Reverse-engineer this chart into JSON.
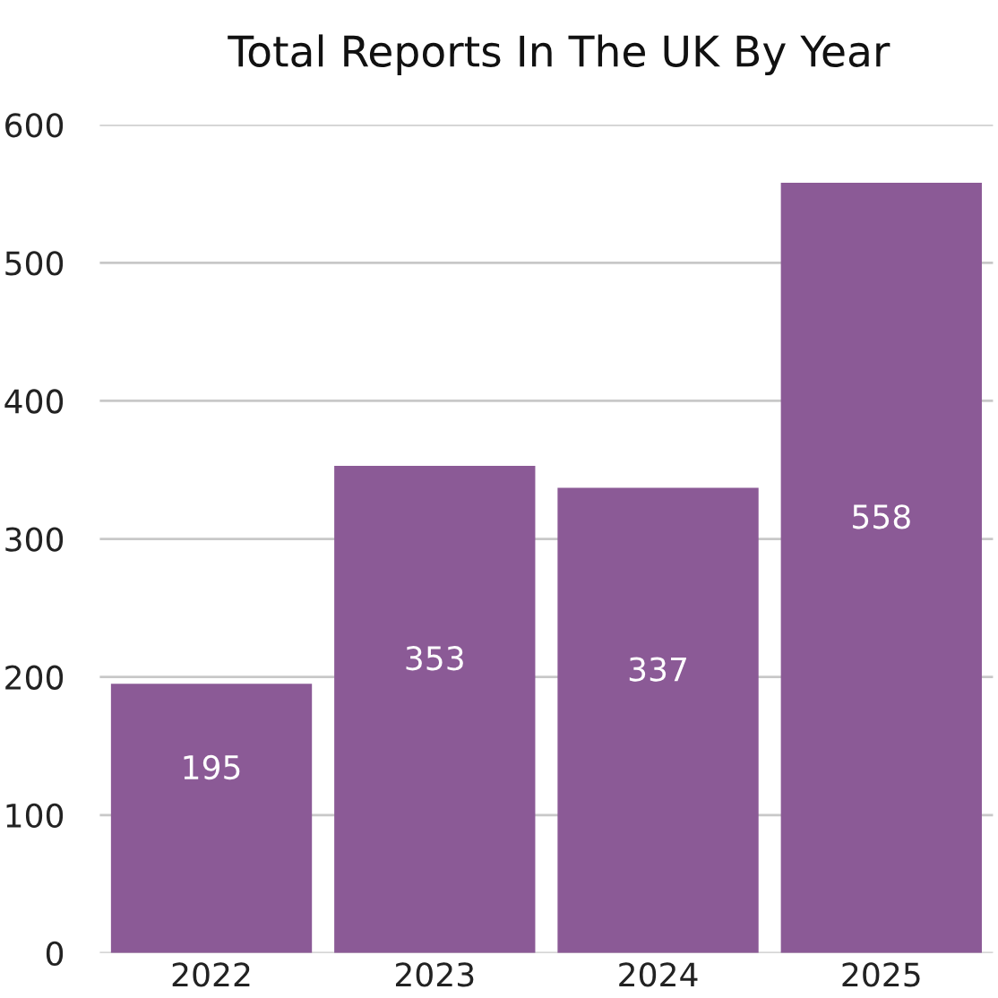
{
  "chart_data": {
    "type": "bar",
    "title": "Total Reports In The UK By Year",
    "categories": [
      "2022",
      "2023",
      "2024",
      "2025"
    ],
    "values": [
      195,
      353,
      337,
      558
    ],
    "color": "#8b5a96",
    "ylim": [
      0,
      600
    ],
    "yticks": [
      0,
      100,
      200,
      300,
      400,
      500,
      600
    ],
    "grid": "y",
    "data_labels": true
  }
}
